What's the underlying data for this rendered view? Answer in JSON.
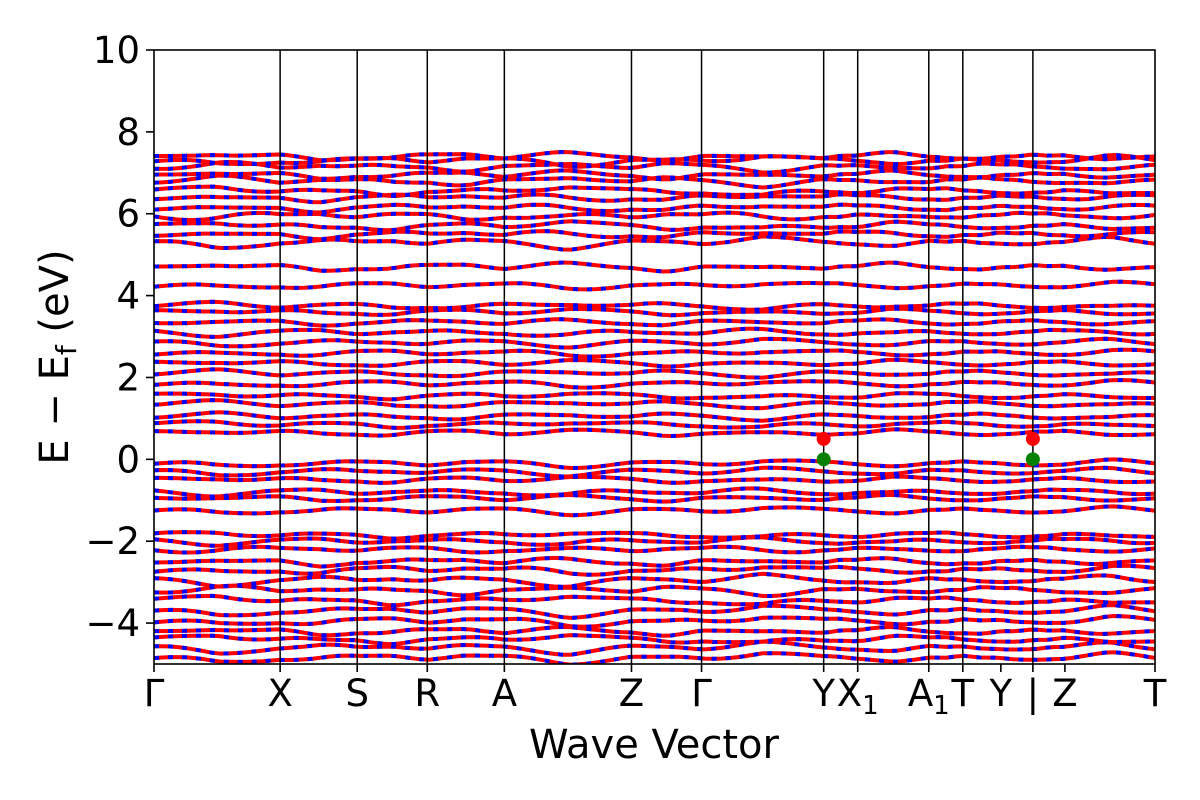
{
  "chart_data": {
    "type": "line",
    "title": "",
    "xlabel": "Wave Vector",
    "ylabel": {
      "main": "E − E",
      "sub": "f",
      "unit": " (eV)"
    },
    "ylim": [
      -5,
      10
    ],
    "yticks": [
      -4,
      -2,
      0,
      2,
      4,
      6,
      8,
      10
    ],
    "ytick_labels": [
      "−4",
      "−2",
      "0",
      "2",
      "4",
      "6",
      "8",
      "10"
    ],
    "grid": false,
    "legend": "none",
    "colors": {
      "bands_primary": "#ff0000",
      "bands_secondary": "#0000ff",
      "vbm": "#008000",
      "cbm": "#ff0000",
      "kline": "#000000"
    },
    "kpoints": [
      {
        "label": "Γ",
        "sub": "",
        "x": 0.0
      },
      {
        "label": "X",
        "sub": "",
        "x": 0.126
      },
      {
        "label": "S",
        "sub": "",
        "x": 0.203
      },
      {
        "label": "R",
        "sub": "",
        "x": 0.273
      },
      {
        "label": "A",
        "sub": "",
        "x": 0.35
      },
      {
        "label": "Z",
        "sub": "",
        "x": 0.477
      },
      {
        "label": "Γ",
        "sub": "",
        "x": 0.547
      },
      {
        "label": "Y",
        "sub": "",
        "x": 0.669
      },
      {
        "label": "X",
        "sub": "1",
        "x": 0.703
      },
      {
        "label": "A",
        "sub": "1",
        "x": 0.774
      },
      {
        "label": "T",
        "sub": "",
        "x": 0.808
      },
      {
        "label": "Y",
        "sub": "",
        "x": 0.846
      },
      {
        "label": "|",
        "sub": "",
        "x": 0.878
      },
      {
        "label": "Z",
        "sub": "",
        "x": 0.91
      },
      {
        "label": "T",
        "sub": "",
        "x": 1.0
      }
    ],
    "vertical_lines": [
      0.126,
      0.203,
      0.273,
      0.35,
      0.477,
      0.547,
      0.669,
      0.703,
      0.774,
      0.808,
      0.878
    ],
    "band_edges": {
      "cbm": [
        {
          "x": 0.669,
          "y": 0.5
        },
        {
          "x": 0.878,
          "y": 0.5
        }
      ],
      "vbm": [
        {
          "x": 0.669,
          "y": 0.0
        },
        {
          "x": 0.878,
          "y": 0.0
        }
      ]
    },
    "bands_energies": {
      "dense_valence": [
        -4.85,
        -4.6,
        -4.4,
        -4.2,
        -3.95,
        -3.7,
        -3.45,
        -3.2,
        -2.95,
        -2.7,
        -2.5
      ],
      "upper_valence": [
        -2.2,
        -2.0,
        -1.85
      ],
      "mid_valence": [
        -1.25,
        -0.95,
        -0.8,
        -0.5,
        -0.3,
        -0.1
      ],
      "lower_conduction": [
        0.65,
        0.85,
        1.05,
        1.35,
        1.55,
        1.85,
        2.1,
        2.35,
        2.6,
        2.85,
        3.1,
        3.35,
        3.6,
        3.75,
        4.25
      ],
      "upper_conduction": [
        4.7,
        5.3,
        5.5,
        5.7,
        5.95,
        6.15,
        6.4,
        6.55,
        6.8,
        6.95,
        7.15,
        7.3,
        7.4
      ]
    }
  }
}
